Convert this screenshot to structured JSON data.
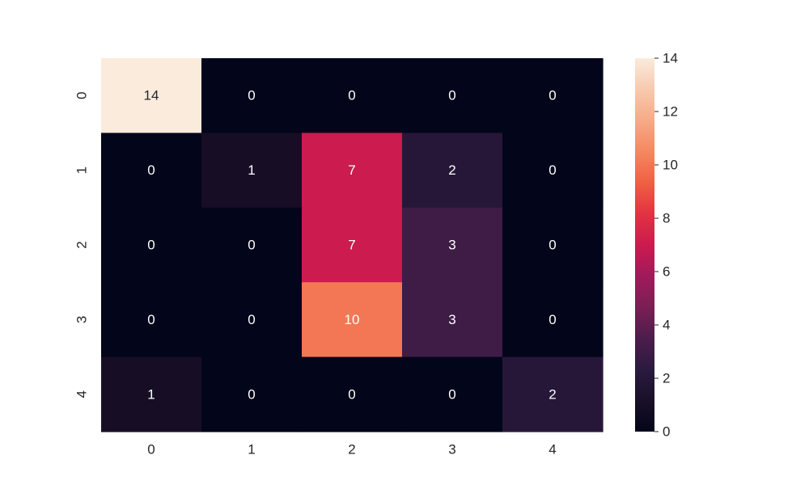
{
  "chart_data": {
    "type": "heatmap",
    "title": "",
    "xlabel": "",
    "ylabel": "",
    "x_categories": [
      "0",
      "1",
      "2",
      "3",
      "4"
    ],
    "y_categories": [
      "0",
      "1",
      "2",
      "3",
      "4"
    ],
    "values": [
      [
        14,
        0,
        0,
        0,
        0
      ],
      [
        0,
        1,
        7,
        2,
        0
      ],
      [
        0,
        0,
        7,
        3,
        0
      ],
      [
        0,
        0,
        10,
        3,
        0
      ],
      [
        1,
        0,
        0,
        0,
        2
      ]
    ],
    "annotations": true,
    "colorbar": {
      "vmin": 0,
      "vmax": 14,
      "ticks": [
        0,
        2,
        4,
        6,
        8,
        10,
        12,
        14
      ],
      "tick_labels": [
        "0",
        "2",
        "4",
        "6",
        "8",
        "10",
        "12",
        "14"
      ],
      "placement": "right"
    },
    "colormap": "rocket",
    "colormap_stops": [
      "#03051a",
      "#1a1028",
      "#2b1a3f",
      "#4c1d4b",
      "#7a1f54",
      "#a11a5b",
      "#cb1b4f",
      "#e13342",
      "#f06043",
      "#f58860",
      "#f7aa86",
      "#f8c9ae",
      "#faebdd"
    ],
    "annotation_text_colors": {
      "light": "#ffffff",
      "dark": "#262626"
    }
  }
}
